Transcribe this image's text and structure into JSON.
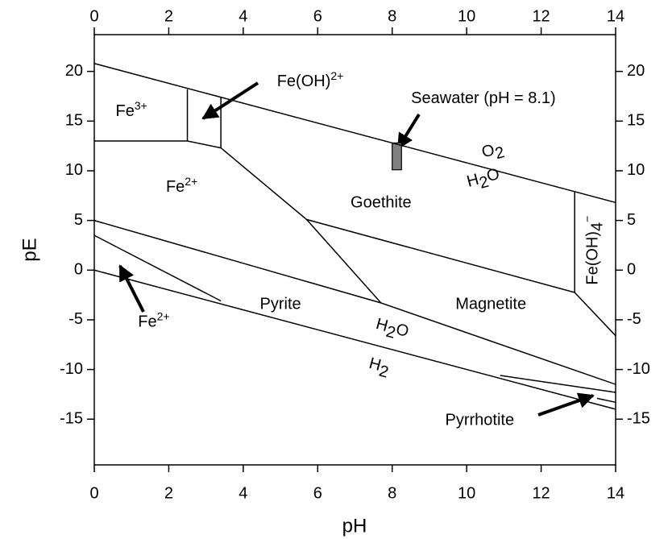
{
  "chart_data": {
    "type": "line",
    "xlabel": "pH",
    "ylabel": "pE",
    "xlim": [
      0,
      14
    ],
    "ylim": [
      -19.6,
      23.7
    ],
    "xticks": [
      0,
      2,
      4,
      6,
      8,
      10,
      12,
      14
    ],
    "yticks": [
      -15,
      -10,
      -5,
      0,
      5,
      10,
      15,
      20
    ],
    "color": "#000000",
    "series": [
      {
        "x": [
          0,
          14
        ],
        "values": [
          20.8,
          6.8
        ]
      },
      {
        "x": [
          0,
          14
        ],
        "values": [
          0,
          -14
        ]
      },
      {
        "x": [
          0,
          2.5,
          3.4,
          5.7,
          7.7
        ],
        "values": [
          13,
          13,
          12.3,
          5.1,
          -3.3
        ]
      },
      {
        "x": [
          2.5,
          2.5
        ],
        "values": [
          13,
          18.2
        ]
      },
      {
        "x": [
          3.4,
          3.4
        ],
        "values": [
          12.3,
          17.4
        ]
      },
      {
        "x": [
          5.7,
          12.9,
          12.9
        ],
        "values": [
          5.1,
          -2.25,
          7.9
        ]
      },
      {
        "x": [
          12.9,
          14
        ],
        "values": [
          -2.25,
          -6.6
        ]
      },
      {
        "x": [
          0,
          7.7,
          14
        ],
        "values": [
          5.0,
          -3.3,
          -11.5
        ]
      },
      {
        "x": [
          0,
          3.4
        ],
        "values": [
          3.5,
          -3.1
        ]
      },
      {
        "x": [
          10.9,
          14
        ],
        "values": [
          -10.6,
          -12.3
        ]
      },
      {
        "x": [
          13.5,
          14
        ],
        "values": [
          -12.9,
          -13.3
        ]
      }
    ],
    "seawater": {
      "x": [
        8.0,
        8.25
      ],
      "values": [
        10.1,
        12.8
      ],
      "color": "#808080"
    },
    "annotations": [
      {
        "x": 1.0,
        "y": 15.9,
        "parts": [
          {
            "text": "Fe"
          },
          {
            "text": "3+",
            "shift": "sup"
          }
        ]
      },
      {
        "x": 5.8,
        "y": 18.9,
        "parts": [
          {
            "text": "Fe(OH)"
          },
          {
            "text": "2+",
            "shift": "sup"
          }
        ]
      },
      {
        "x": 10.45,
        "y": 17.2,
        "parts": [
          {
            "text": "Seawater (pH = 8.1)"
          }
        ]
      },
      {
        "x": 10.7,
        "y": 12.0,
        "rotate": -15,
        "parts": [
          {
            "text": "O"
          },
          {
            "text": "2",
            "shift": "sub"
          }
        ]
      },
      {
        "x": 10.45,
        "y": 9.2,
        "rotate": -15,
        "parts": [
          {
            "text": "H"
          },
          {
            "text": "2",
            "shift": "sub"
          },
          {
            "text": "O"
          }
        ]
      },
      {
        "x": 2.35,
        "y": 8.3,
        "parts": [
          {
            "text": "Fe"
          },
          {
            "text": "2+",
            "shift": "sup"
          }
        ]
      },
      {
        "x": 7.7,
        "y": 6.7,
        "parts": [
          {
            "text": "Goethite"
          }
        ]
      },
      {
        "x": 13.4,
        "y": 2.0,
        "rotate": -90,
        "parts": [
          {
            "text": "Fe(OH)"
          },
          {
            "text": "4",
            "shift": "sub"
          },
          {
            "text": "−",
            "shift": "sup"
          }
        ]
      },
      {
        "x": 1.6,
        "y": -5.3,
        "parts": [
          {
            "text": "Fe"
          },
          {
            "text": "2+",
            "shift": "sup"
          }
        ]
      },
      {
        "x": 5.0,
        "y": -3.5,
        "parts": [
          {
            "text": "Pyrite"
          }
        ]
      },
      {
        "x": 10.65,
        "y": -3.5,
        "parts": [
          {
            "text": "Magnetite"
          }
        ]
      },
      {
        "x": 8.0,
        "y": -5.9,
        "rotate": 15,
        "parts": [
          {
            "text": "H"
          },
          {
            "text": "2",
            "shift": "sub"
          },
          {
            "text": "O"
          }
        ]
      },
      {
        "x": 7.65,
        "y": -9.7,
        "rotate": 15,
        "parts": [
          {
            "text": "H"
          },
          {
            "text": "2",
            "shift": "sub"
          }
        ]
      },
      {
        "x": 10.35,
        "y": -15.2,
        "parts": [
          {
            "text": "Pyrrhotite"
          }
        ]
      }
    ]
  }
}
